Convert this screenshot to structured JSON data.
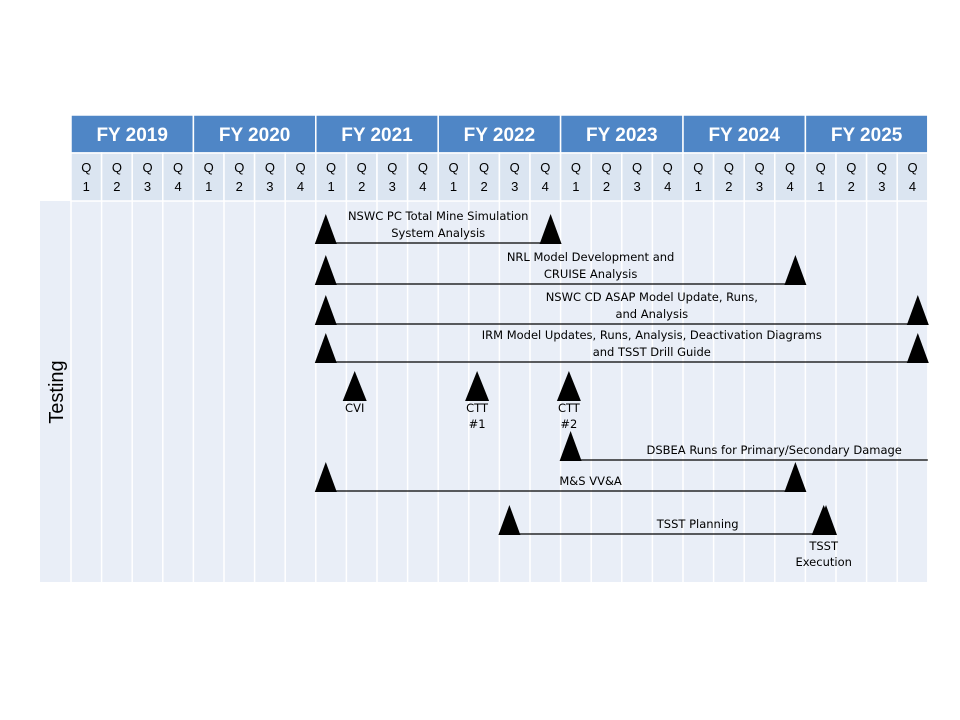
{
  "years": [
    "FY 2019",
    "FY 2020",
    "FY 2021",
    "FY 2022",
    "FY 2023",
    "FY 2024",
    "FY 2025"
  ],
  "quarter_labels": [
    "Q",
    "1",
    "Q",
    "2",
    "Q",
    "3",
    "Q",
    "4"
  ],
  "quarter_names": [
    "1",
    "2",
    "3",
    "4"
  ],
  "row_label": "Testing",
  "colors": {
    "header_fill": "#4f86c6",
    "quarter_fill": "#dbe5f1",
    "body_fill": "#e9eef7",
    "grid_line": "#ffffff",
    "line": "#000000",
    "marker": "#000000"
  },
  "tasks": [
    {
      "lines": [
        "NSWC PC Total Mine Simulation",
        "System Analysis"
      ],
      "start": "FY 2021 Q1",
      "end": "FY 2022 Q4"
    },
    {
      "lines": [
        "NRL Model Development  and",
        "CRUISE Analysis"
      ],
      "start": "FY 2021 Q1",
      "end": "FY 2024 Q4"
    },
    {
      "lines": [
        "NSWC CD ASAP Model Update, Runs,",
        "and Analysis"
      ],
      "start": "FY 2021 Q1",
      "end": "FY 2025 Q4"
    },
    {
      "lines": [
        "IRM Model Updates, Runs, Analysis, Deactivation Diagrams",
        "and TSST Drill Guide"
      ],
      "start": "FY 2021 Q1",
      "end": "FY 2025 Q4"
    },
    {
      "lines": [
        "DSBEA Runs for Primary/Secondary Damage"
      ],
      "start": "FY 2023 Q1",
      "end": "FY 2025 Q4"
    },
    {
      "lines": [
        "M&S VV&A"
      ],
      "start": "FY 2021 Q1",
      "end": "FY 2024 Q4"
    },
    {
      "lines": [
        "TSST Planning"
      ],
      "start": "FY 2022 Q3",
      "end": "FY 2025 Q1"
    }
  ],
  "milestones": [
    {
      "lines": [
        "CVI"
      ],
      "when": "FY 2021 Q2"
    },
    {
      "lines": [
        "CTT",
        "#1"
      ],
      "when": "FY 2022 Q2"
    },
    {
      "lines": [
        "CTT",
        "#2"
      ],
      "when": "FY 2023 Q1"
    },
    {
      "lines": [
        "TSST",
        "Execution"
      ],
      "when": "FY 2025 Q1"
    }
  ]
}
